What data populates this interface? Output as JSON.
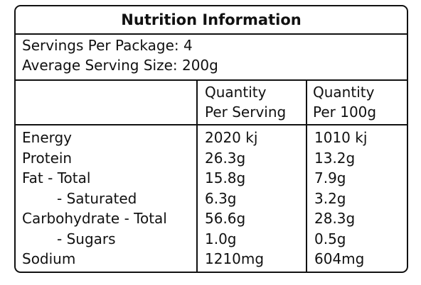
{
  "title": "Nutrition Information",
  "servings_per_package": "Servings Per Package: 4",
  "average_serving_size": "Average Serving Size: 200g",
  "columns": {
    "per_serving": [
      "Quantity",
      "Per Serving"
    ],
    "per_100g": [
      "Quantity",
      "Per 100g"
    ]
  },
  "rows": [
    {
      "label": "Energy",
      "per_serving": "2020 kj",
      "per_100g": "1010 kj",
      "indent": false
    },
    {
      "label": "Protein",
      "per_serving": "26.3g",
      "per_100g": "13.2g",
      "indent": false
    },
    {
      "label": "Fat  - Total",
      "per_serving": "15.8g",
      "per_100g": "7.9g",
      "indent": false
    },
    {
      "label": "- Saturated",
      "per_serving": "6.3g",
      "per_100g": "3.2g",
      "indent": true
    },
    {
      "label": "Carbohydrate - Total",
      "per_serving": "56.6g",
      "per_100g": "28.3g",
      "indent": false
    },
    {
      "label": "- Sugars",
      "per_serving": "1.0g",
      "per_100g": "0.5g",
      "indent": true
    },
    {
      "label": "Sodium",
      "per_serving": "1210mg",
      "per_100g": "604mg",
      "indent": false
    }
  ]
}
